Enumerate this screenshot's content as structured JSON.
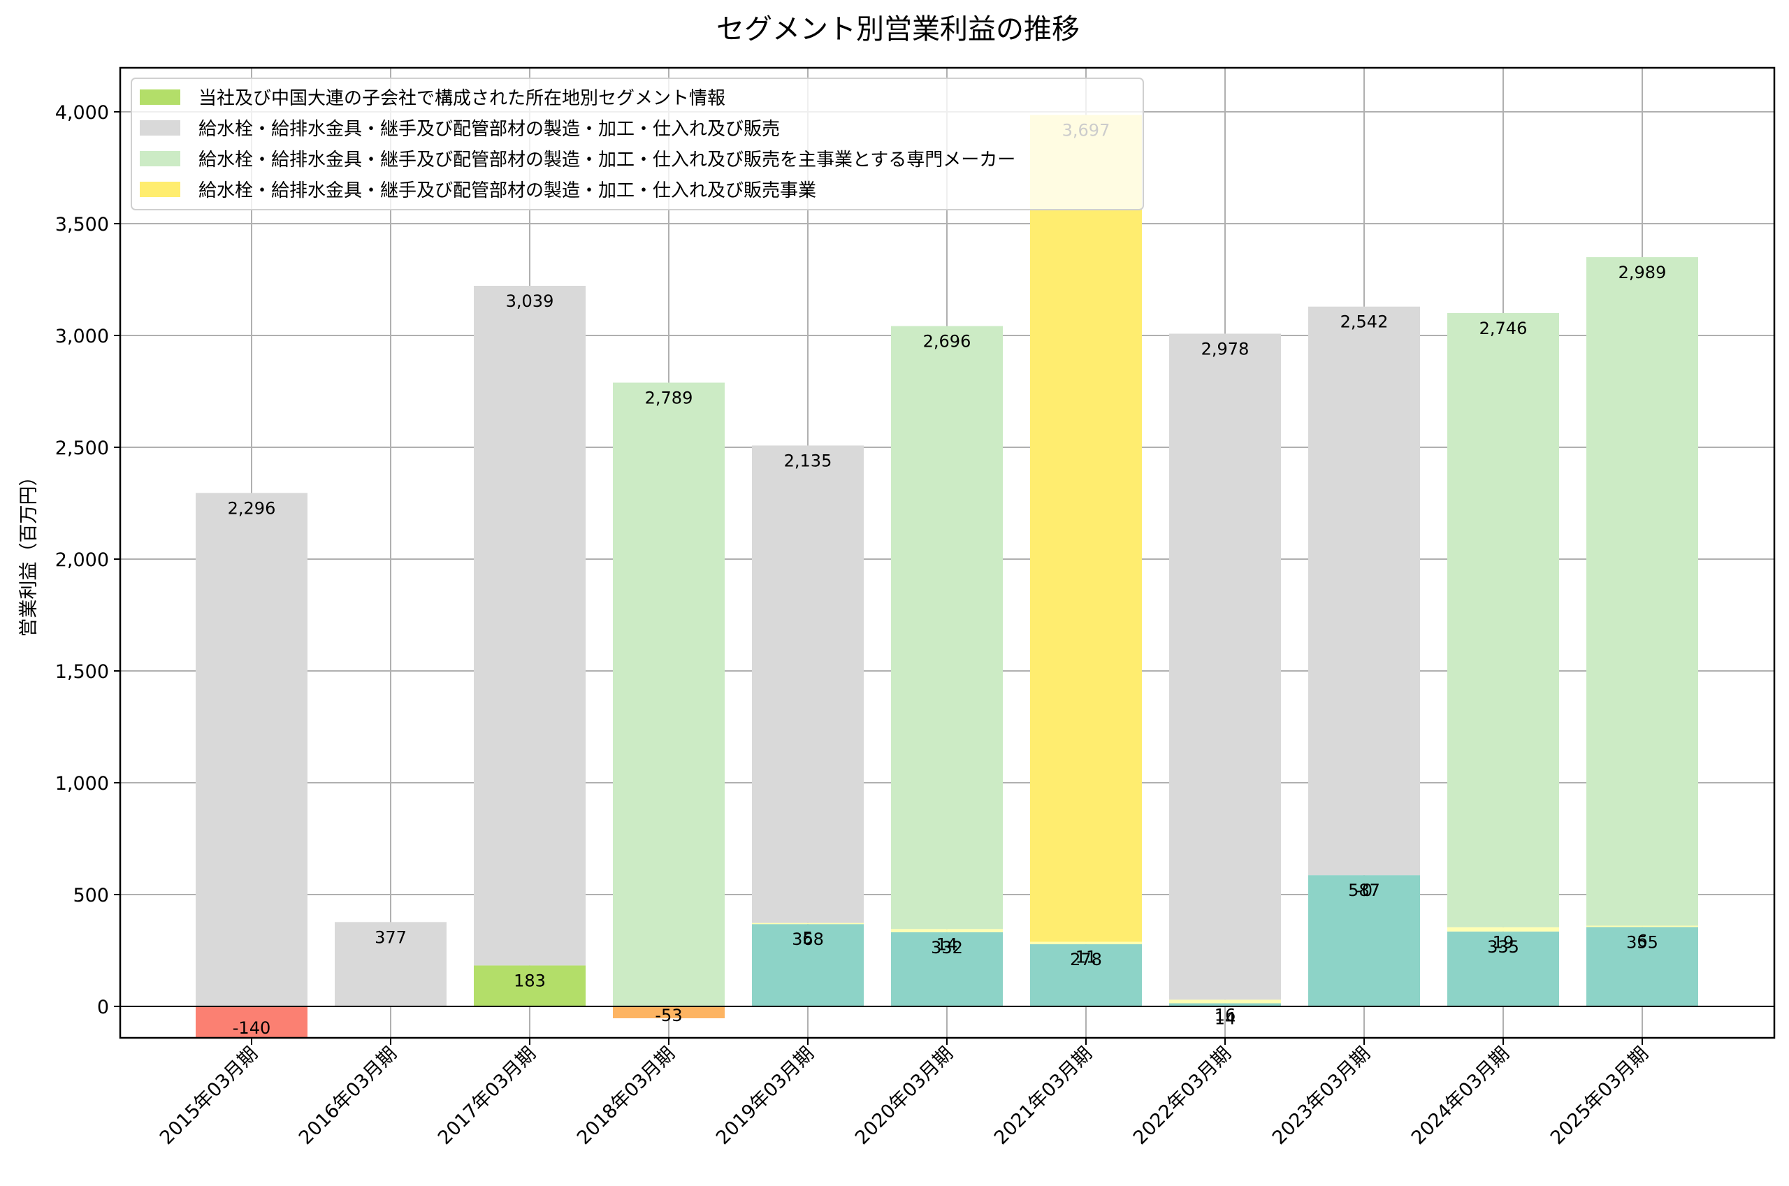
{
  "chart_data": {
    "type": "bar",
    "stacked": true,
    "title": "セグメント別営業利益の推移",
    "xlabel": "",
    "ylabel": "営業利益（百万円）",
    "ylim": [
      -140,
      4197
    ],
    "yticks": [
      0,
      500,
      1000,
      1500,
      2000,
      2500,
      3000,
      3500,
      4000
    ],
    "ytick_labels": [
      "0",
      "500",
      "1,000",
      "1,500",
      "2,000",
      "2,500",
      "3,000",
      "3,500",
      "4,000"
    ],
    "grid": true,
    "legend_position": "upper left",
    "categories": [
      "2015年03月期",
      "2016年03月期",
      "2017年03月期",
      "2018年03月期",
      "2019年03月期",
      "2020年03月期",
      "2021年03月期",
      "2022年03月期",
      "2023年03月期",
      "2024年03月期",
      "2025年03月期"
    ],
    "series": [
      {
        "name": "",
        "color": "#8dd3c7",
        "in_legend": false,
        "values": [
          null,
          null,
          null,
          null,
          368,
          332,
          278,
          14,
          587,
          335,
          355
        ]
      },
      {
        "name": "",
        "color": "#ffffb3",
        "in_legend": false,
        "values": [
          null,
          null,
          null,
          null,
          5,
          14,
          11,
          16,
          0,
          19,
          6
        ]
      },
      {
        "name": "",
        "color": "#fb8072",
        "in_legend": false,
        "values": [
          -140,
          null,
          null,
          null,
          null,
          null,
          null,
          null,
          null,
          null,
          null
        ]
      },
      {
        "name": "",
        "color": "#fdb462",
        "in_legend": false,
        "values": [
          null,
          null,
          null,
          -53,
          null,
          null,
          null,
          null,
          null,
          null,
          null
        ]
      },
      {
        "name": "当社及び中国大連の子会社で構成された所在地別セグメント情報",
        "color": "#b3de69",
        "in_legend": true,
        "values": [
          null,
          null,
          183,
          null,
          null,
          null,
          null,
          null,
          null,
          null,
          null
        ]
      },
      {
        "name": "給水栓・給排水金具・継手及び配管部材の製造・加工・仕入れ及び販売",
        "color": "#d9d9d9",
        "in_legend": true,
        "values": [
          2296,
          377,
          3039,
          null,
          2135,
          null,
          null,
          2978,
          2542,
          null,
          null
        ]
      },
      {
        "name": "給水栓・給排水金具・継手及び配管部材の製造・加工・仕入れ及び販売を主事業とする専門メーカー",
        "color": "#ccebc5",
        "in_legend": true,
        "values": [
          null,
          null,
          null,
          2789,
          null,
          2696,
          null,
          null,
          null,
          2746,
          2989
        ]
      },
      {
        "name": "給水栓・給排水金具・継手及び配管部材の製造・加工・仕入れ及び販売事業",
        "color": "#ffed6f",
        "in_legend": true,
        "values": [
          null,
          null,
          null,
          null,
          null,
          null,
          3697,
          null,
          null,
          null,
          null
        ]
      }
    ],
    "value_labels": {
      "2015年03月期": [
        "-140",
        "2,296"
      ],
      "2016年03月期": [
        "377"
      ],
      "2017年03月期": [
        "183",
        "3,039"
      ],
      "2018年03月期": [
        "-53",
        "2,789"
      ],
      "2019年03月期": [
        "368",
        "5",
        "2,135"
      ],
      "2020年03月期": [
        "332",
        "14",
        "2,696"
      ],
      "2021年03月期": [
        "278",
        "11",
        "3,697"
      ],
      "2022年03月期": [
        "14",
        "16",
        "2,978"
      ],
      "2023年03月期": [
        "587",
        "-0",
        "2,542"
      ],
      "2024年03月期": [
        "335",
        "19",
        "2,746"
      ],
      "2025年03月期": [
        "355",
        "6",
        "2,989"
      ]
    }
  }
}
